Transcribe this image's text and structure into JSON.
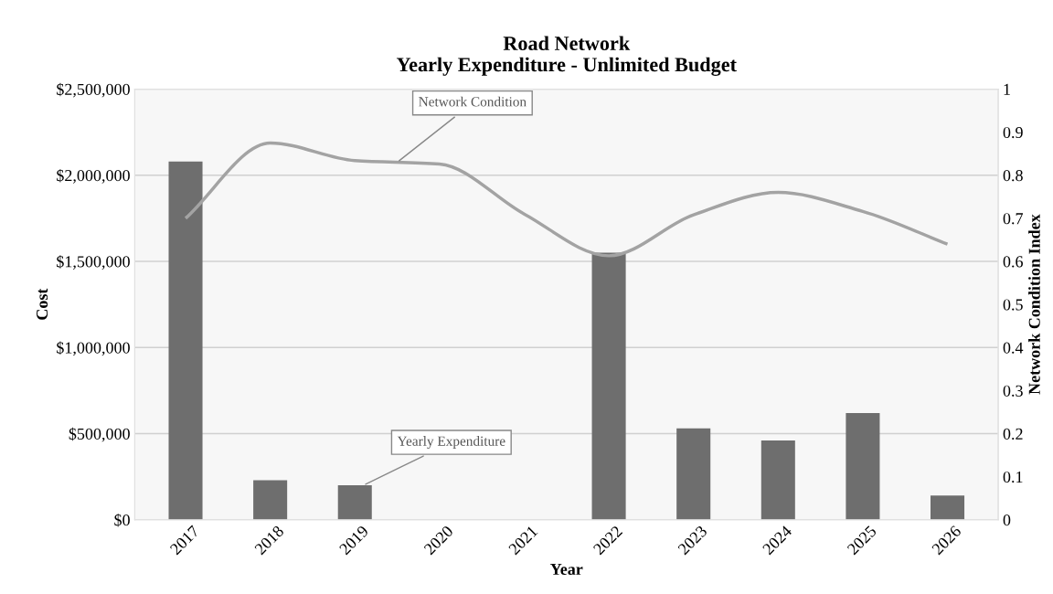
{
  "chart_data": {
    "type": "bar",
    "title": "Road Network\nYearly Expenditure - Unlimited Budget",
    "xlabel": "Year",
    "ylabel": "Cost",
    "y2label": "Network Condition Index",
    "categories": [
      "2017",
      "2018",
      "2019",
      "2020",
      "2021",
      "2022",
      "2023",
      "2024",
      "2025",
      "2026"
    ],
    "series": [
      {
        "name": "Yearly Expenditure",
        "color": "#6e6e6e",
        "values": [
          2080000,
          230000,
          200000,
          0,
          0,
          1550000,
          530000,
          460000,
          620000,
          140000
        ]
      },
      {
        "name": "Network Condition",
        "type": "line",
        "axis": "y2",
        "color": "#a3a3a3",
        "values": [
          0.7,
          0.875,
          0.834,
          0.826,
          0.71,
          0.613,
          0.708,
          0.76,
          0.716,
          0.64
        ]
      }
    ],
    "ylim": [
      0,
      2500000
    ],
    "yticks": [
      {
        "value": 0,
        "label": "$0"
      },
      {
        "value": 500000,
        "label": "$500,000"
      },
      {
        "value": 1000000,
        "label": "$1,000,000"
      },
      {
        "value": 1500000,
        "label": "$1,500,000"
      },
      {
        "value": 2000000,
        "label": "$2,000,000"
      },
      {
        "value": 2500000,
        "label": "$2,500,000"
      }
    ],
    "y2lim": [
      0,
      1
    ],
    "y2ticks": [
      0,
      0.1,
      0.2,
      0.3,
      0.4,
      0.5,
      0.6,
      0.7,
      0.8,
      0.9,
      1
    ],
    "grid": "y",
    "legend": false
  }
}
